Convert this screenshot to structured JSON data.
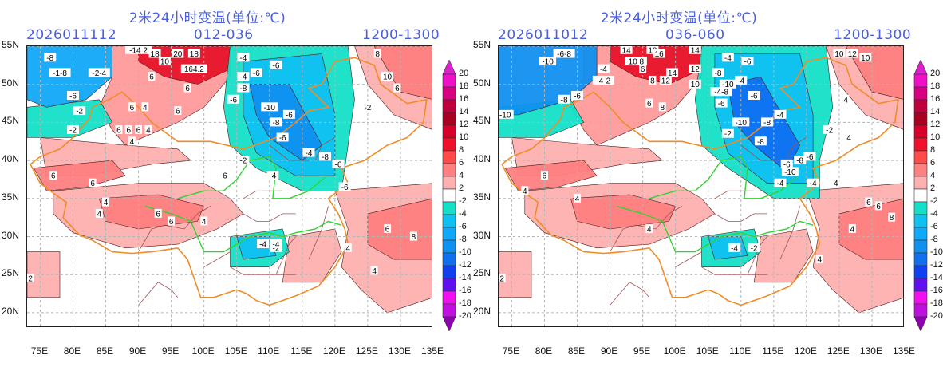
{
  "panels": [
    {
      "id": "left",
      "title": "2米24小时变温(单位:℃)",
      "init_time": "2026011112",
      "forecast_range": "012-036",
      "valid_hours": "1200-1300",
      "labels": [
        {
          "lon": 76.5,
          "lat": 53.5,
          "text": "-8"
        },
        {
          "lon": 78,
          "lat": 51.5,
          "text": "-1-8"
        },
        {
          "lon": 84,
          "lat": 51.5,
          "text": "-2-4"
        },
        {
          "lon": 80,
          "lat": 48.5,
          "text": "-6"
        },
        {
          "lon": 81,
          "lat": 46.5,
          "text": "-2"
        },
        {
          "lon": 80,
          "lat": 44,
          "text": "-2"
        },
        {
          "lon": 90,
          "lat": 54.5,
          "text": "-14 2"
        },
        {
          "lon": 92.5,
          "lat": 54,
          "text": "18"
        },
        {
          "lon": 96,
          "lat": 54,
          "text": "20"
        },
        {
          "lon": 98.5,
          "lat": 54,
          "text": "18"
        },
        {
          "lon": 98.5,
          "lat": 52,
          "text": "164.2"
        },
        {
          "lon": 94,
          "lat": 53,
          "text": "10"
        },
        {
          "lon": 92,
          "lat": 51,
          "text": "6"
        },
        {
          "lon": 97.5,
          "lat": 49.5,
          "text": "6"
        },
        {
          "lon": 89,
          "lat": 47,
          "text": "6"
        },
        {
          "lon": 91,
          "lat": 47,
          "text": "4"
        },
        {
          "lon": 96,
          "lat": 46.5,
          "text": "6"
        },
        {
          "lon": 87,
          "lat": 44,
          "text": "6"
        },
        {
          "lon": 88.5,
          "lat": 44,
          "text": "6"
        },
        {
          "lon": 90,
          "lat": 44,
          "text": "6"
        },
        {
          "lon": 91.5,
          "lat": 44,
          "text": "4"
        },
        {
          "lon": 89,
          "lat": 42.5,
          "text": "4"
        },
        {
          "lon": 106,
          "lat": 53.5,
          "text": "-4"
        },
        {
          "lon": 111,
          "lat": 52.5,
          "text": "-6"
        },
        {
          "lon": 108,
          "lat": 51.5,
          "text": "-6"
        },
        {
          "lon": 106,
          "lat": 51,
          "text": "-4"
        },
        {
          "lon": 106,
          "lat": 49.5,
          "text": "-8"
        },
        {
          "lon": 104.5,
          "lat": 48,
          "text": "-6"
        },
        {
          "lon": 110,
          "lat": 47,
          "text": "-10"
        },
        {
          "lon": 113,
          "lat": 46,
          "text": "-6"
        },
        {
          "lon": 111,
          "lat": 45,
          "text": "-8"
        },
        {
          "lon": 112,
          "lat": 43,
          "text": "-6"
        },
        {
          "lon": 116,
          "lat": 41,
          "text": "-4"
        },
        {
          "lon": 118.5,
          "lat": 40.5,
          "text": "-8"
        },
        {
          "lon": 120.5,
          "lat": 39.5,
          "text": "-6"
        },
        {
          "lon": 106,
          "lat": 40,
          "text": "-2"
        },
        {
          "lon": 110.5,
          "lat": 38,
          "text": "-4"
        },
        {
          "lon": 103,
          "lat": 38,
          "text": "-6"
        },
        {
          "lon": 121.5,
          "lat": 36.5,
          "text": "-6"
        },
        {
          "lon": 126.5,
          "lat": 54,
          "text": "8"
        },
        {
          "lon": 128,
          "lat": 51,
          "text": "10"
        },
        {
          "lon": 129.5,
          "lat": 49.5,
          "text": "6"
        },
        {
          "lon": 125,
          "lat": 47,
          "text": "-2"
        },
        {
          "lon": 77,
          "lat": 38,
          "text": "6"
        },
        {
          "lon": 83,
          "lat": 37,
          "text": "6"
        },
        {
          "lon": 85,
          "lat": 34.5,
          "text": "4"
        },
        {
          "lon": 93,
          "lat": 33,
          "text": "6"
        },
        {
          "lon": 95,
          "lat": 32,
          "text": "6"
        },
        {
          "lon": 84,
          "lat": 33,
          "text": "4"
        },
        {
          "lon": 100,
          "lat": 32,
          "text": "4"
        },
        {
          "lon": 109,
          "lat": 29,
          "text": "-4"
        },
        {
          "lon": 111,
          "lat": 28.5,
          "text": "-2"
        },
        {
          "lon": 111,
          "lat": 29,
          "text": "-4"
        },
        {
          "lon": 128,
          "lat": 31,
          "text": "6"
        },
        {
          "lon": 132,
          "lat": 30,
          "text": "8"
        },
        {
          "lon": 122,
          "lat": 28.5,
          "text": "4"
        },
        {
          "lon": 126,
          "lat": 25.5,
          "text": "4"
        },
        {
          "lon": 73.5,
          "lat": 24.5,
          "text": "2"
        }
      ]
    },
    {
      "id": "right",
      "title": "2米24小时变温(单位:℃)",
      "init_time": "2026011012",
      "forecast_range": "036-060",
      "valid_hours": "1200-1300",
      "labels": [
        {
          "lon": 80.5,
          "lat": 53,
          "text": "-10"
        },
        {
          "lon": 83,
          "lat": 54,
          "text": "-6-8"
        },
        {
          "lon": 74,
          "lat": 46,
          "text": "-10"
        },
        {
          "lon": 83,
          "lat": 48,
          "text": "-8"
        },
        {
          "lon": 85,
          "lat": 48.5,
          "text": "-6"
        },
        {
          "lon": 89,
          "lat": 52,
          "text": "-4"
        },
        {
          "lon": 89,
          "lat": 50.5,
          "text": "-4-2"
        },
        {
          "lon": 92.5,
          "lat": 54.5,
          "text": "14"
        },
        {
          "lon": 96.5,
          "lat": 54.5,
          "text": "18"
        },
        {
          "lon": 97.5,
          "lat": 54,
          "text": "16"
        },
        {
          "lon": 94,
          "lat": 53,
          "text": "10 8"
        },
        {
          "lon": 95,
          "lat": 52,
          "text": "6"
        },
        {
          "lon": 99.5,
          "lat": 51.5,
          "text": "14"
        },
        {
          "lon": 98.5,
          "lat": 50.5,
          "text": "12"
        },
        {
          "lon": 103,
          "lat": 54.5,
          "text": "14"
        },
        {
          "lon": 103,
          "lat": 52,
          "text": "12"
        },
        {
          "lon": 96.5,
          "lat": 50.5,
          "text": "8"
        },
        {
          "lon": 103,
          "lat": 50,
          "text": "10"
        },
        {
          "lon": 96,
          "lat": 47.5,
          "text": "6"
        },
        {
          "lon": 98,
          "lat": 47,
          "text": "8"
        },
        {
          "lon": 108,
          "lat": 53.5,
          "text": "-4"
        },
        {
          "lon": 111,
          "lat": 53,
          "text": "-6"
        },
        {
          "lon": 106.5,
          "lat": 51.5,
          "text": "-8"
        },
        {
          "lon": 108,
          "lat": 50,
          "text": "-10"
        },
        {
          "lon": 107,
          "lat": 49,
          "text": "-4-8"
        },
        {
          "lon": 110,
          "lat": 50.5,
          "text": "-4"
        },
        {
          "lon": 107,
          "lat": 47.5,
          "text": "-6"
        },
        {
          "lon": 112,
          "lat": 48.5,
          "text": "-6"
        },
        {
          "lon": 110,
          "lat": 45,
          "text": "-10"
        },
        {
          "lon": 114,
          "lat": 45,
          "text": "-8"
        },
        {
          "lon": 116,
          "lat": 46,
          "text": "-4"
        },
        {
          "lon": 113,
          "lat": 42.5,
          "text": "-8"
        },
        {
          "lon": 108,
          "lat": 43.5,
          "text": "-2"
        },
        {
          "lon": 117,
          "lat": 39.5,
          "text": "-6"
        },
        {
          "lon": 120.5,
          "lat": 40.5,
          "text": "-6"
        },
        {
          "lon": 119,
          "lat": 40,
          "text": "-8"
        },
        {
          "lon": 117.5,
          "lat": 38.5,
          "text": "-10"
        },
        {
          "lon": 121,
          "lat": 37,
          "text": "-4"
        },
        {
          "lon": 116,
          "lat": 37,
          "text": "-4"
        },
        {
          "lon": 125,
          "lat": 54,
          "text": "10"
        },
        {
          "lon": 127,
          "lat": 54,
          "text": "12"
        },
        {
          "lon": 129,
          "lat": 53.5,
          "text": "10"
        },
        {
          "lon": 126,
          "lat": 48,
          "text": "4"
        },
        {
          "lon": 123.5,
          "lat": 44,
          "text": "-2"
        },
        {
          "lon": 126.5,
          "lat": 43,
          "text": "4"
        },
        {
          "lon": 80,
          "lat": 38,
          "text": "6"
        },
        {
          "lon": 77,
          "lat": 36,
          "text": "4"
        },
        {
          "lon": 85,
          "lat": 35,
          "text": "4"
        },
        {
          "lon": 96,
          "lat": 31,
          "text": "4"
        },
        {
          "lon": 109,
          "lat": 28.5,
          "text": "-4"
        },
        {
          "lon": 112,
          "lat": 28.5,
          "text": "-2"
        },
        {
          "lon": 129.5,
          "lat": 34.5,
          "text": "6"
        },
        {
          "lon": 131,
          "lat": 34,
          "text": "6"
        },
        {
          "lon": 133,
          "lat": 32.5,
          "text": "8"
        },
        {
          "lon": 124.5,
          "lat": 37,
          "text": "4"
        },
        {
          "lon": 127,
          "lat": 31,
          "text": "4"
        },
        {
          "lon": 122,
          "lat": 27,
          "text": "4"
        },
        {
          "lon": 73.5,
          "lat": 24.5,
          "text": "2"
        }
      ]
    }
  ],
  "axes": {
    "lat_ticks": [
      "55N",
      "50N",
      "45N",
      "40N",
      "35N",
      "30N",
      "25N",
      "20N"
    ],
    "lat_values": [
      55,
      50,
      45,
      40,
      35,
      30,
      25,
      20
    ],
    "lon_ticks": [
      "75E",
      "80E",
      "85E",
      "90E",
      "95E",
      "100E",
      "105E",
      "110E",
      "115E",
      "120E",
      "125E",
      "130E",
      "135E"
    ],
    "lon_values": [
      75,
      80,
      85,
      90,
      95,
      100,
      105,
      110,
      115,
      120,
      125,
      130,
      135
    ],
    "lon_range": [
      73,
      135
    ],
    "lat_range": [
      18,
      55
    ]
  },
  "colorbar": {
    "labels": [
      "20",
      "18",
      "16",
      "14",
      "12",
      "10",
      "8",
      "6",
      "4",
      "2",
      "-2",
      "-4",
      "-6",
      "-8",
      "-10",
      "-12",
      "-14",
      "-16",
      "-18",
      "-20"
    ],
    "colors": [
      "#f010c8",
      "#d80080",
      "#c0003c",
      "#a80020",
      "#d8002a",
      "#f0102a",
      "#ff4a4a",
      "#ff8080",
      "#ffb0b0",
      "#ffffff",
      "#14e0c8",
      "#10c0f0",
      "#10a8f8",
      "#1090f0",
      "#1070f0",
      "#1040f0",
      "#6010f0",
      "#f010f0",
      "#c010e0"
    ],
    "top_arrow_color": "#e020d0",
    "bottom_arrow_color": "#9000b0"
  },
  "map_colors": {
    "china_border": "#f08c28",
    "river": "#32d232",
    "province": "#a05050",
    "grid": "#b4b4b4"
  }
}
